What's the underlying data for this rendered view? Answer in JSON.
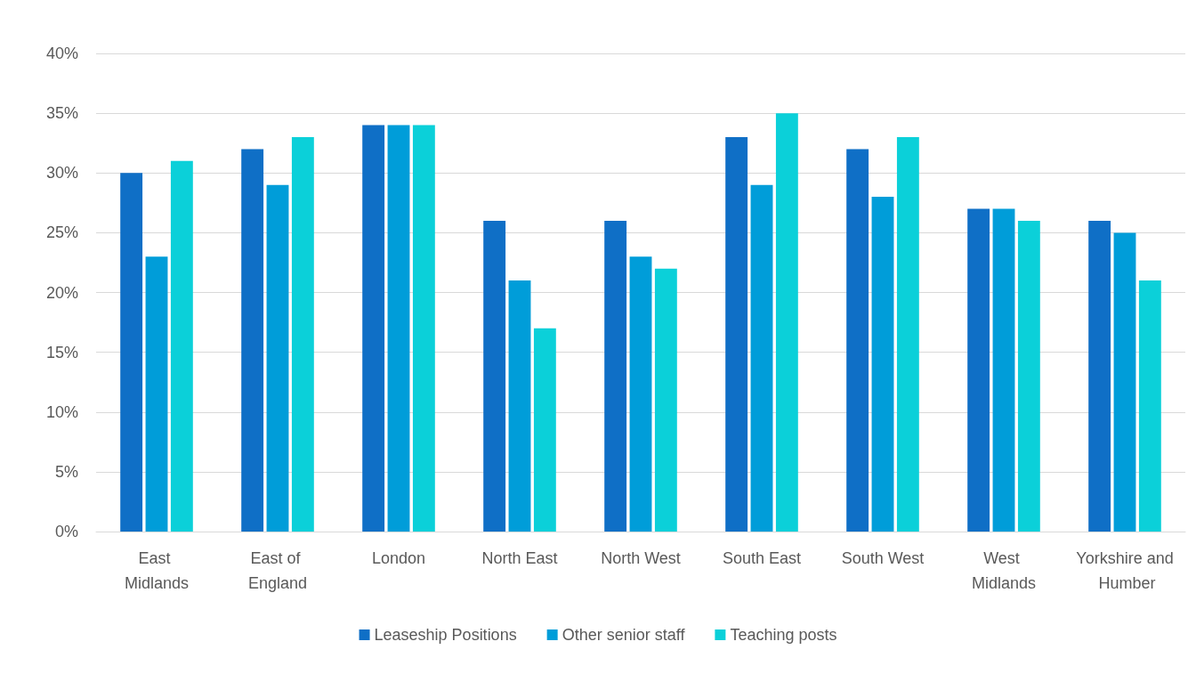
{
  "chart_data": {
    "type": "bar",
    "categories": [
      "East Midlands",
      "East of England",
      "London",
      "North East",
      "North West",
      "South East",
      "South West",
      "West Midlands",
      "Yorkshire and Humber"
    ],
    "series": [
      {
        "name": "Leaseship Positions",
        "color": "#0f6fc6",
        "values": [
          30,
          32,
          34,
          26,
          26,
          33,
          32,
          27,
          26
        ]
      },
      {
        "name": "Other senior staff",
        "color": "#009dd9",
        "values": [
          23,
          29,
          34,
          21,
          23,
          29,
          28,
          27,
          25
        ]
      },
      {
        "name": "Teaching posts",
        "color": "#0bd0d9",
        "values": [
          31,
          33,
          34,
          17,
          22,
          35,
          33,
          26,
          21
        ]
      }
    ],
    "ylim": [
      0,
      40
    ],
    "yticks": [
      {
        "value": 0,
        "label": "0%"
      },
      {
        "value": 5,
        "label": "5%"
      },
      {
        "value": 10,
        "label": "10%"
      },
      {
        "value": 15,
        "label": "15%"
      },
      {
        "value": 20,
        "label": "20%"
      },
      {
        "value": 25,
        "label": "25%"
      },
      {
        "value": 30,
        "label": "30%"
      },
      {
        "value": 35,
        "label": "35%"
      },
      {
        "value": 40,
        "label": "40%"
      }
    ],
    "grid": "y",
    "legend": "bottom"
  }
}
